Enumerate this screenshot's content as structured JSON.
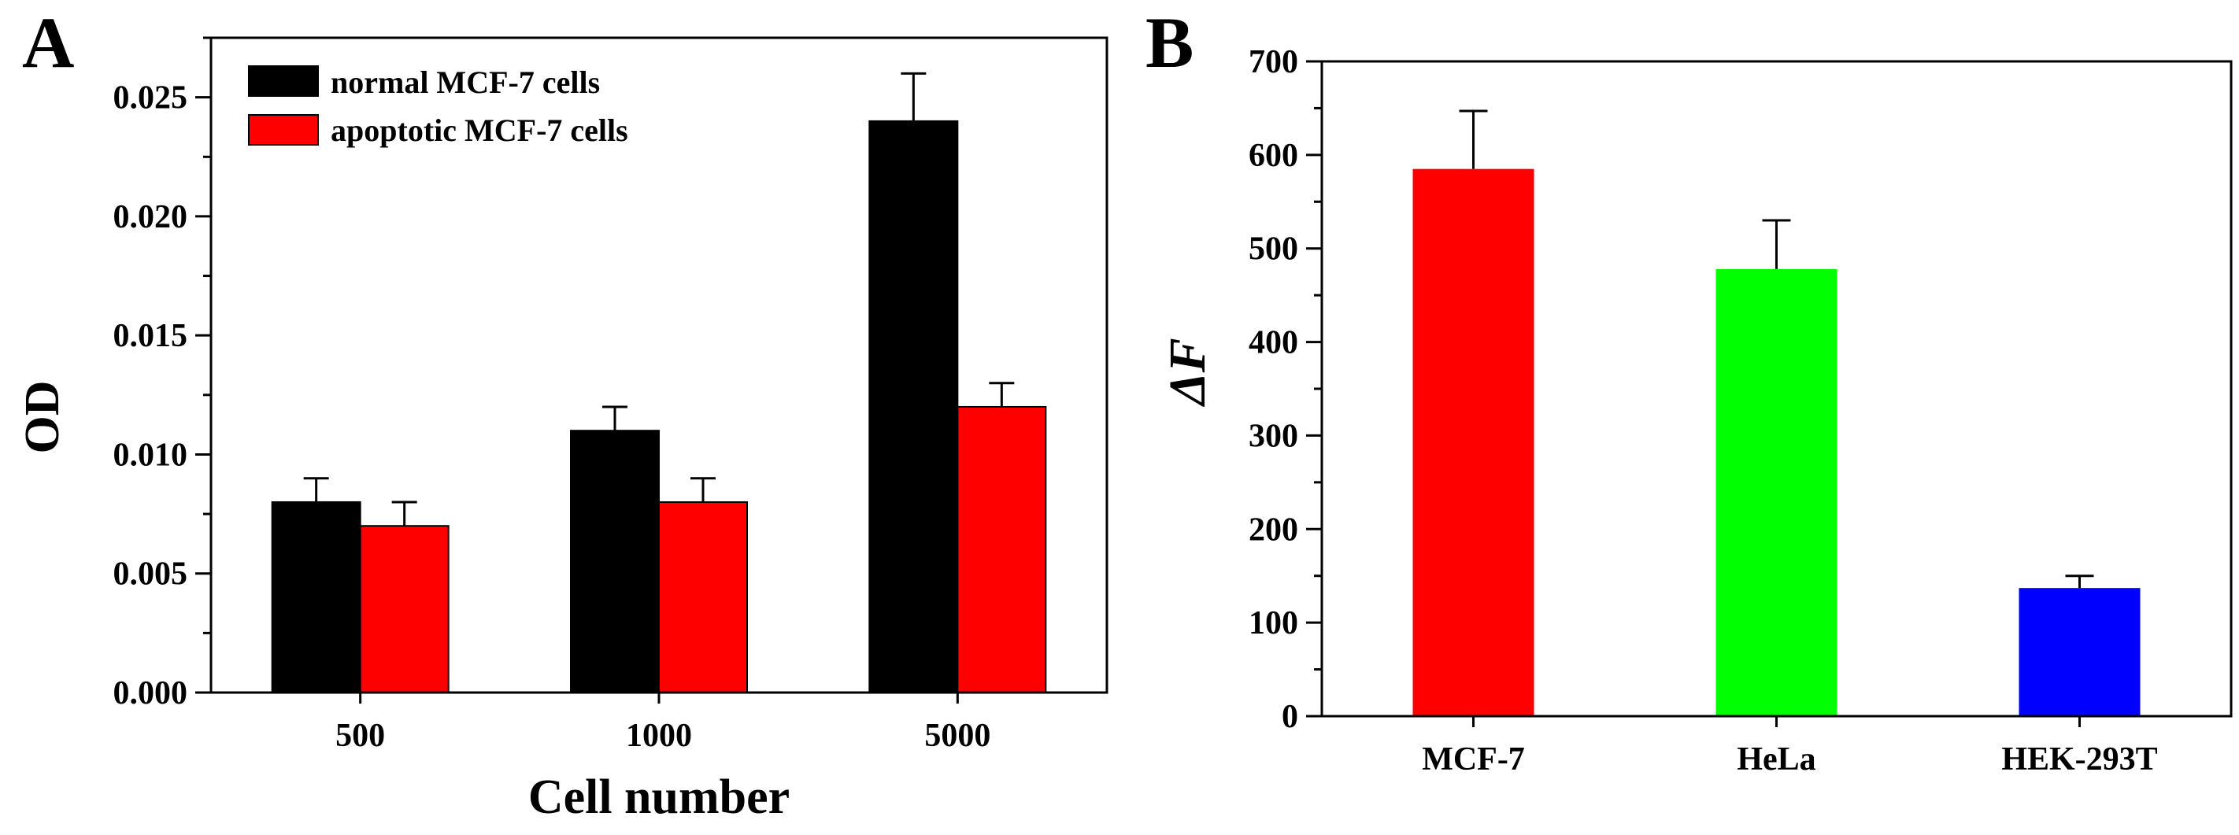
{
  "chart_data": [
    {
      "panel_label": "A",
      "type": "bar",
      "title": "",
      "xlabel": "Cell number",
      "ylabel": "OD",
      "categories": [
        "500",
        "1000",
        "5000"
      ],
      "ylim": [
        0,
        0.0275
      ],
      "yticks": [
        "0.000",
        "0.005",
        "0.010",
        "0.015",
        "0.020",
        "0.025"
      ],
      "series": [
        {
          "name": "normal MCF-7 cells",
          "color": "#000000",
          "values": [
            0.008,
            0.011,
            0.024
          ],
          "errors": [
            0.001,
            0.001,
            0.002
          ]
        },
        {
          "name": "apoptotic MCF-7 cells",
          "color": "#ff0000",
          "values": [
            0.007,
            0.008,
            0.012
          ],
          "errors": [
            0.001,
            0.001,
            0.001
          ]
        }
      ],
      "legend": "top-left"
    },
    {
      "panel_label": "B",
      "type": "bar",
      "title": "",
      "xlabel": "",
      "ylabel": "ΔF",
      "categories": [
        "MCF-7",
        "HeLa",
        "HEK-293T"
      ],
      "ylim": [
        0,
        700
      ],
      "yticks": [
        "0",
        "100",
        "200",
        "300",
        "400",
        "500",
        "600",
        "700"
      ],
      "series": [
        {
          "name": "ΔF",
          "colors": [
            "#ff0000",
            "#00ff00",
            "#0000ff"
          ],
          "values": [
            585,
            478,
            137
          ],
          "errors": [
            62,
            52,
            13
          ]
        }
      ]
    }
  ]
}
